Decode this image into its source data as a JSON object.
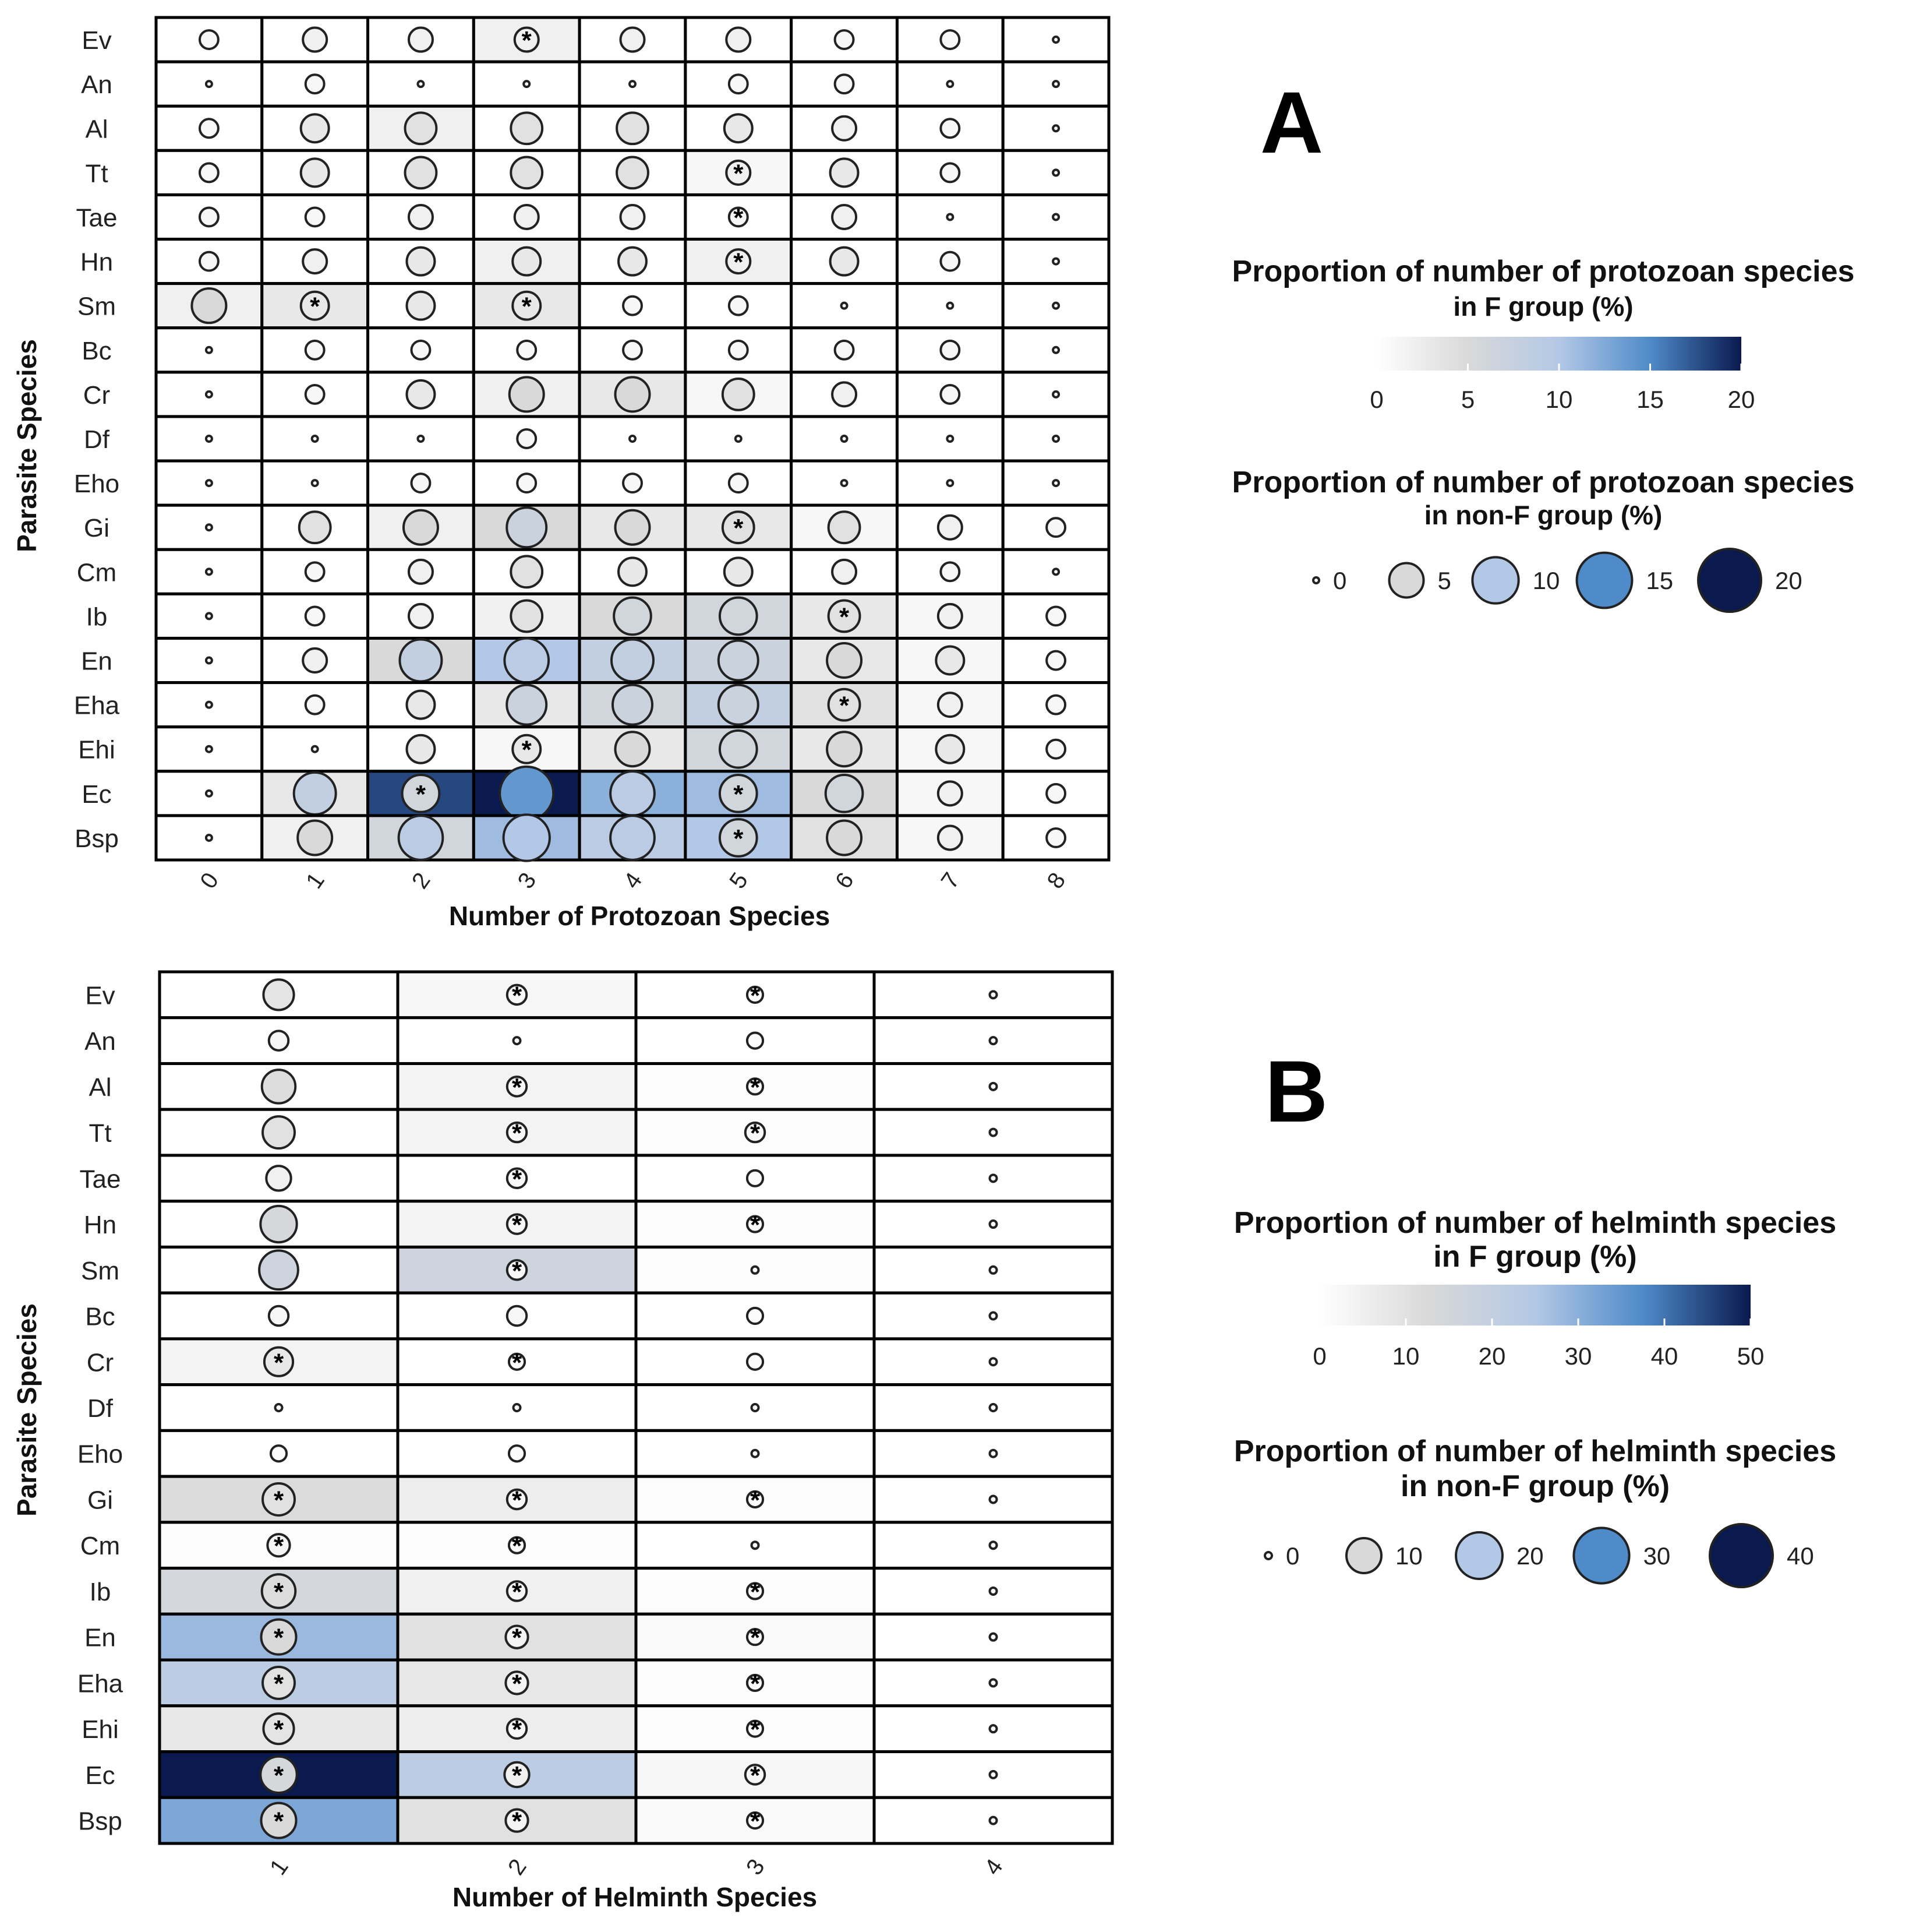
{
  "chart_data": [
    {
      "type": "heatmap",
      "panel_label": "A",
      "xlabel": "Number of Protozoan Species",
      "ylabel": "Parasite Species",
      "x_categories": [
        "0",
        "1",
        "2",
        "3",
        "4",
        "5",
        "6",
        "7",
        "8"
      ],
      "y_categories": [
        "Ev",
        "An",
        "Al",
        "Tt",
        "Tae",
        "Hn",
        "Sm",
        "Bc",
        "Cr",
        "Df",
        "Eho",
        "Gi",
        "Cm",
        "Ib",
        "En",
        "Eha",
        "Ehi",
        "Ec",
        "Bsp"
      ],
      "fill_legend": {
        "title_line1": "Proportion of number of protozoan species",
        "title_line2": "in F group (%)",
        "ticks": [
          0,
          5,
          10,
          15,
          20
        ],
        "range": [
          0,
          20
        ]
      },
      "size_legend": {
        "title_line1": "Proportion of number of protozoan species",
        "title_line2": "in non-F group (%)",
        "ticks": [
          0,
          5,
          10,
          15,
          20
        ],
        "range": [
          0,
          20
        ]
      },
      "fill_values": [
        [
          0,
          0,
          0,
          2,
          0,
          0,
          0,
          0,
          0
        ],
        [
          0,
          0,
          0,
          0,
          0,
          0,
          0,
          0,
          0
        ],
        [
          0,
          0,
          2,
          0,
          0,
          0,
          0,
          0,
          0
        ],
        [
          0,
          0,
          0,
          0,
          0,
          1,
          0,
          0,
          0
        ],
        [
          0,
          0,
          0,
          0,
          0,
          0,
          0,
          0,
          0
        ],
        [
          0,
          0,
          0,
          2,
          0,
          2,
          0,
          0,
          0
        ],
        [
          2,
          3,
          0,
          3,
          0,
          0,
          0,
          0,
          0
        ],
        [
          0,
          0,
          0,
          0,
          0,
          0,
          0,
          0,
          0
        ],
        [
          0,
          0,
          0,
          2,
          3,
          1,
          0,
          0,
          0
        ],
        [
          0,
          0,
          0,
          0,
          0,
          0,
          0,
          0,
          0
        ],
        [
          0,
          0,
          0,
          0,
          0,
          0,
          0,
          0,
          0
        ],
        [
          0,
          0,
          2,
          5,
          3,
          3,
          1,
          0,
          0
        ],
        [
          0,
          0,
          0,
          0,
          0,
          0,
          0,
          0,
          0
        ],
        [
          0,
          0,
          0,
          2,
          5,
          6,
          3,
          1,
          0
        ],
        [
          0,
          0,
          5,
          10,
          8,
          7,
          3,
          1,
          0
        ],
        [
          0,
          0,
          0,
          3,
          6,
          8,
          4,
          1,
          0
        ],
        [
          0,
          0,
          0,
          1,
          3,
          6,
          3,
          1,
          0
        ],
        [
          0,
          3,
          18,
          20,
          12,
          11,
          5,
          1,
          0
        ],
        [
          0,
          2,
          6,
          11,
          9,
          10,
          4,
          1,
          0
        ]
      ],
      "size_values": [
        [
          1,
          2,
          2,
          2,
          2,
          2,
          1,
          1,
          0
        ],
        [
          0,
          1,
          0,
          0,
          0,
          1,
          1,
          0,
          0
        ],
        [
          1,
          3,
          4,
          4,
          4,
          3,
          2,
          1,
          0
        ],
        [
          1,
          3,
          4,
          4,
          4,
          2,
          3,
          1,
          0
        ],
        [
          1,
          1,
          2,
          2,
          2,
          1,
          2,
          0,
          0
        ],
        [
          1,
          2,
          3,
          3,
          3,
          2,
          3,
          1,
          0
        ],
        [
          5,
          3,
          3,
          3,
          1,
          1,
          0,
          0,
          0
        ],
        [
          0,
          1,
          1,
          1,
          1,
          1,
          1,
          1,
          0
        ],
        [
          0,
          1,
          3,
          5,
          5,
          4,
          2,
          1,
          0
        ],
        [
          0,
          0,
          0,
          1,
          0,
          0,
          0,
          0,
          0
        ],
        [
          0,
          0,
          1,
          1,
          1,
          1,
          0,
          0,
          0
        ],
        [
          0,
          4,
          5,
          7,
          5,
          4,
          4,
          2,
          1
        ],
        [
          0,
          1,
          2,
          4,
          3,
          3,
          2,
          1,
          0
        ],
        [
          0,
          1,
          2,
          4,
          6,
          6,
          4,
          2,
          1
        ],
        [
          0,
          2,
          8,
          9,
          8,
          7,
          5,
          3,
          1
        ],
        [
          0,
          1,
          3,
          7,
          7,
          7,
          4,
          2,
          1
        ],
        [
          0,
          0,
          3,
          3,
          5,
          6,
          5,
          3,
          1
        ],
        [
          0,
          8,
          6,
          14,
          9,
          6,
          6,
          2,
          1
        ],
        [
          0,
          5,
          9,
          10,
          9,
          6,
          5,
          2,
          1
        ]
      ],
      "significance": [
        [
          false,
          false,
          false,
          true,
          false,
          false,
          false,
          false,
          false
        ],
        [
          false,
          false,
          false,
          false,
          false,
          false,
          false,
          false,
          false
        ],
        [
          false,
          false,
          false,
          false,
          false,
          false,
          false,
          false,
          false
        ],
        [
          false,
          false,
          false,
          false,
          false,
          true,
          false,
          false,
          false
        ],
        [
          false,
          false,
          false,
          false,
          false,
          true,
          false,
          false,
          false
        ],
        [
          false,
          false,
          false,
          false,
          false,
          true,
          false,
          false,
          false
        ],
        [
          false,
          true,
          false,
          true,
          false,
          false,
          false,
          false,
          false
        ],
        [
          false,
          false,
          false,
          false,
          false,
          false,
          false,
          false,
          false
        ],
        [
          false,
          false,
          false,
          false,
          false,
          false,
          false,
          false,
          false
        ],
        [
          false,
          false,
          false,
          false,
          false,
          false,
          false,
          false,
          false
        ],
        [
          false,
          false,
          false,
          false,
          false,
          false,
          false,
          false,
          false
        ],
        [
          false,
          false,
          false,
          false,
          false,
          true,
          false,
          false,
          false
        ],
        [
          false,
          false,
          false,
          false,
          false,
          false,
          false,
          false,
          false
        ],
        [
          false,
          false,
          false,
          false,
          false,
          false,
          true,
          false,
          false
        ],
        [
          false,
          false,
          false,
          false,
          false,
          false,
          false,
          false,
          false
        ],
        [
          false,
          false,
          false,
          false,
          false,
          false,
          true,
          false,
          false
        ],
        [
          false,
          false,
          false,
          true,
          false,
          false,
          false,
          false,
          false
        ],
        [
          false,
          false,
          true,
          false,
          false,
          true,
          false,
          false,
          false
        ],
        [
          false,
          false,
          false,
          false,
          false,
          true,
          false,
          false,
          false
        ]
      ],
      "marker_symbol": "*"
    },
    {
      "type": "heatmap",
      "panel_label": "B",
      "xlabel": "Number of Helminth Species",
      "ylabel": "Parasite Species",
      "x_categories": [
        "1",
        "2",
        "3",
        "4"
      ],
      "y_categories": [
        "Ev",
        "An",
        "Al",
        "Tt",
        "Tae",
        "Hn",
        "Sm",
        "Bc",
        "Cr",
        "Df",
        "Eho",
        "Gi",
        "Cm",
        "Ib",
        "En",
        "Eha",
        "Ehi",
        "Ec",
        "Bsp"
      ],
      "fill_legend": {
        "title_line1": "Proportion of number of helminth species",
        "title_line2": "in F group (%)",
        "ticks": [
          0,
          10,
          20,
          30,
          40,
          50
        ],
        "range": [
          0,
          50
        ]
      },
      "size_legend": {
        "title_line1": "Proportion of number of helminth species",
        "title_line2": "in non-F group (%)",
        "ticks": [
          0,
          10,
          20,
          30,
          40
        ],
        "range": [
          0,
          40
        ]
      },
      "fill_values": [
        [
          0,
          3,
          0,
          0
        ],
        [
          0,
          0,
          0,
          0
        ],
        [
          0,
          4,
          1,
          0
        ],
        [
          0,
          4,
          1,
          0
        ],
        [
          0,
          0,
          0,
          0
        ],
        [
          0,
          4,
          1,
          0
        ],
        [
          0,
          16,
          1,
          0
        ],
        [
          0,
          0,
          0,
          0
        ],
        [
          4,
          0,
          0,
          0
        ],
        [
          0,
          0,
          0,
          0
        ],
        [
          0,
          0,
          0,
          0
        ],
        [
          12,
          6,
          1,
          0
        ],
        [
          1,
          1,
          0,
          0
        ],
        [
          14,
          5,
          1,
          0
        ],
        [
          28,
          10,
          2,
          0
        ],
        [
          22,
          8,
          1,
          0
        ],
        [
          8,
          6,
          1,
          0
        ],
        [
          50,
          22,
          3,
          0
        ],
        [
          32,
          10,
          2,
          0
        ]
      ],
      "size_values": [
        [
          7,
          2,
          1,
          0
        ],
        [
          2,
          0,
          1,
          0
        ],
        [
          9,
          2,
          1,
          0
        ],
        [
          8,
          2,
          2,
          0
        ],
        [
          4,
          2,
          1,
          0
        ],
        [
          11,
          2,
          1,
          0
        ],
        [
          13,
          2,
          0,
          0
        ],
        [
          2,
          2,
          1,
          0
        ],
        [
          6,
          1,
          1,
          0
        ],
        [
          0,
          0,
          0,
          0
        ],
        [
          1,
          1,
          0,
          0
        ],
        [
          8,
          2,
          1,
          0
        ],
        [
          3,
          1,
          0,
          0
        ],
        [
          9,
          2,
          1,
          0
        ],
        [
          10,
          3,
          1,
          0
        ],
        [
          8,
          3,
          1,
          0
        ],
        [
          7,
          2,
          1,
          0
        ],
        [
          11,
          4,
          2,
          0
        ],
        [
          10,
          3,
          1,
          0
        ]
      ],
      "significance": [
        [
          false,
          true,
          true,
          false
        ],
        [
          false,
          false,
          false,
          false
        ],
        [
          false,
          true,
          true,
          false
        ],
        [
          false,
          true,
          true,
          false
        ],
        [
          false,
          true,
          false,
          false
        ],
        [
          false,
          true,
          true,
          false
        ],
        [
          false,
          true,
          false,
          false
        ],
        [
          false,
          false,
          false,
          false
        ],
        [
          true,
          true,
          false,
          false
        ],
        [
          false,
          false,
          false,
          false
        ],
        [
          false,
          false,
          false,
          false
        ],
        [
          true,
          true,
          true,
          false
        ],
        [
          true,
          true,
          false,
          false
        ],
        [
          true,
          true,
          true,
          false
        ],
        [
          true,
          true,
          true,
          false
        ],
        [
          true,
          true,
          true,
          false
        ],
        [
          true,
          true,
          true,
          false
        ],
        [
          true,
          true,
          true,
          false
        ],
        [
          true,
          true,
          true,
          false
        ]
      ],
      "marker_symbol": "*"
    }
  ]
}
